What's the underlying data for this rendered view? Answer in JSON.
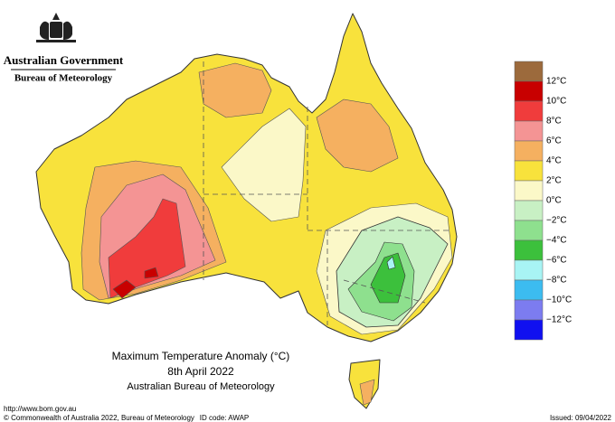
{
  "header": {
    "government": "Australian Government",
    "agency": "Bureau of Meteorology"
  },
  "map": {
    "title": "Maximum Temperature Anomaly (°C)",
    "date": "8th April 2022",
    "source": "Australian Bureau of Meteorology"
  },
  "legend": {
    "colors": [
      "#9c6a3c",
      "#c80000",
      "#f03c3c",
      "#f49494",
      "#f5b060",
      "#f8e23c",
      "#fbf8c8",
      "#c8f0c4",
      "#8ee08e",
      "#3cc03c",
      "#a8f4f4",
      "#3cbcf0",
      "#7c7cf0",
      "#1010f0"
    ],
    "labels": [
      "12°C",
      "10°C",
      "8°C",
      "6°C",
      "4°C",
      "2°C",
      "0°C",
      "−2°C",
      "−4°C",
      "−6°C",
      "−8°C",
      "−10°C",
      "−12°C"
    ]
  },
  "footer": {
    "url": "http://www.bom.gov.au",
    "copyright": "© Commonwealth of Australia 2022, Bureau of Meteorology",
    "id_code": "ID code: AWAP",
    "issued": "Issued: 09/04/2022"
  }
}
